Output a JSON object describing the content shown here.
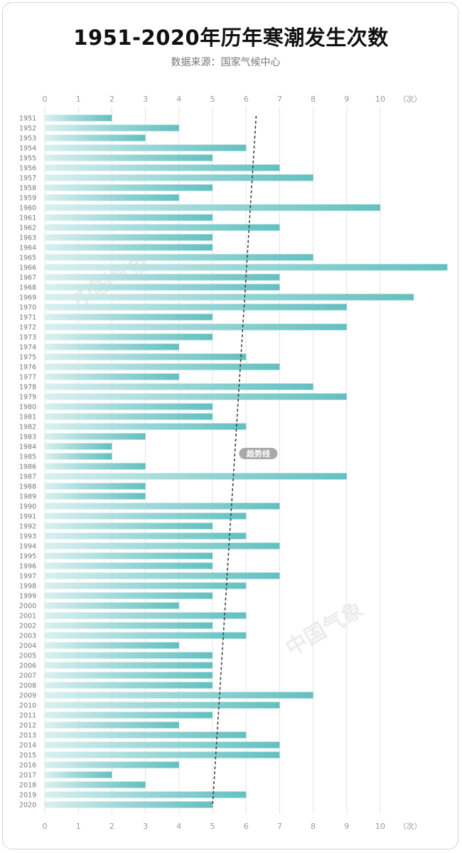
{
  "chart_data": {
    "type": "bar",
    "orientation": "horizontal",
    "title": "1951-2020年历年寒潮发生次数",
    "subtitle": "数据来源：国家气候中心",
    "unit_label": "（次）",
    "xlim": [
      0,
      12
    ],
    "ticks": [
      0,
      1,
      2,
      3,
      4,
      5,
      6,
      7,
      8,
      9,
      10
    ],
    "grid": true,
    "categories": [
      "1951",
      "1952",
      "1953",
      "1954",
      "1955",
      "1956",
      "1957",
      "1958",
      "1959",
      "1960",
      "1961",
      "1962",
      "1963",
      "1964",
      "1965",
      "1966",
      "1967",
      "1968",
      "1969",
      "1970",
      "1971",
      "1972",
      "1973",
      "1974",
      "1975",
      "1976",
      "1977",
      "1978",
      "1979",
      "1980",
      "1981",
      "1982",
      "1983",
      "1984",
      "1985",
      "1986",
      "1987",
      "1988",
      "1989",
      "1990",
      "1991",
      "1992",
      "1993",
      "1994",
      "1995",
      "1996",
      "1997",
      "1998",
      "1999",
      "2000",
      "2001",
      "2002",
      "2003",
      "2004",
      "2005",
      "2006",
      "2007",
      "2008",
      "2009",
      "2010",
      "2011",
      "2012",
      "2013",
      "2014",
      "2015",
      "2016",
      "2017",
      "2018",
      "2019",
      "2020"
    ],
    "values": [
      2,
      4,
      3,
      6,
      5,
      7,
      8,
      5,
      4,
      10,
      5,
      7,
      5,
      5,
      8,
      12,
      7,
      7,
      11,
      9,
      5,
      9,
      5,
      4,
      6,
      7,
      4,
      8,
      9,
      5,
      5,
      6,
      3,
      2,
      2,
      3,
      9,
      3,
      3,
      7,
      6,
      5,
      6,
      7,
      5,
      5,
      7,
      6,
      5,
      4,
      6,
      5,
      6,
      4,
      5,
      5,
      5,
      5,
      8,
      7,
      5,
      4,
      6,
      7,
      7,
      4,
      2,
      3,
      6,
      5
    ],
    "trend": {
      "label": "趋势线",
      "start": 6.3,
      "end": 5.0
    },
    "bar_color": "#6cc4c4"
  },
  "watermark": "中国气象"
}
